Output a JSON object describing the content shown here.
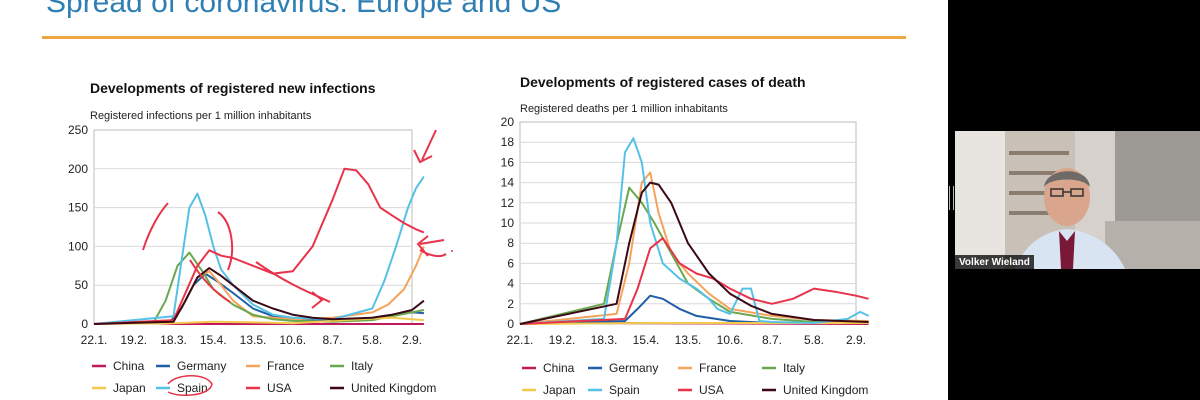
{
  "slide": {
    "title": "Spread of coronavirus: Europe and US",
    "accent_color": "#f0a544",
    "title_color": "#2f7fb5"
  },
  "colors": {
    "China": "#c2185b",
    "Germany": "#1f5fa8",
    "France": "#f5a35b",
    "Italy": "#6aa84f",
    "Japan": "#f2c94c",
    "Spain": "#56c1e6",
    "USA": "#e8334a",
    "United Kingdom": "#3b0a16",
    "annotation": "#e8334a"
  },
  "chart_data": [
    {
      "type": "line",
      "title": "Developments of registered new infections",
      "ylabel": "Registered infections per 1 million inhabitants",
      "xlabel": "",
      "ylim": [
        0,
        250
      ],
      "yticks": [
        "0",
        "50",
        "100",
        "150",
        "200",
        "250"
      ],
      "x": [
        "22.1.",
        "19.2.",
        "18.3.",
        "15.4.",
        "13.5.",
        "10.6.",
        "8.7.",
        "5.8.",
        "2.9."
      ],
      "grid": true,
      "legend_position": "bottom",
      "series": [
        {
          "name": "China",
          "x": [
            0,
            0.5,
            1,
            1.5,
            2,
            8.3
          ],
          "y": [
            0,
            2,
            3,
            1,
            0,
            0
          ]
        },
        {
          "name": "Germany",
          "x": [
            0,
            1.9,
            2.2,
            2.5,
            2.8,
            3.1,
            3.5,
            4,
            4.5,
            5,
            6,
            7,
            7.5,
            8,
            8.3
          ],
          "y": [
            0,
            2,
            20,
            50,
            65,
            55,
            40,
            20,
            10,
            6,
            5,
            8,
            12,
            15,
            14
          ]
        },
        {
          "name": "France",
          "x": [
            0,
            2,
            2.3,
            2.6,
            2.9,
            3.2,
            3.5,
            4,
            5,
            6,
            7,
            7.4,
            7.8,
            8.1,
            8.3
          ],
          "y": [
            0,
            3,
            30,
            60,
            68,
            50,
            30,
            10,
            6,
            8,
            15,
            25,
            45,
            75,
            100
          ]
        },
        {
          "name": "Italy",
          "x": [
            0,
            1.5,
            1.8,
            2.1,
            2.4,
            2.7,
            3,
            3.5,
            4,
            4.5,
            5,
            6,
            7,
            8,
            8.3
          ],
          "y": [
            0,
            2,
            30,
            75,
            92,
            70,
            45,
            25,
            12,
            6,
            4,
            3,
            5,
            15,
            18
          ]
        },
        {
          "name": "Japan",
          "x": [
            0,
            2,
            3,
            4,
            5,
            6,
            7,
            7.5,
            8,
            8.3
          ],
          "y": [
            0,
            1,
            3,
            2,
            1,
            4,
            7,
            8,
            6,
            5
          ]
        },
        {
          "name": "Spain",
          "x": [
            0,
            2,
            2.2,
            2.4,
            2.6,
            2.8,
            3,
            3.2,
            3.5,
            4,
            4.5,
            5,
            6,
            7,
            7.3,
            7.6,
            7.9,
            8.1,
            8.3
          ],
          "y": [
            0,
            10,
            80,
            150,
            168,
            140,
            100,
            70,
            50,
            25,
            12,
            8,
            6,
            20,
            55,
            100,
            150,
            175,
            190
          ]
        },
        {
          "name": "USA",
          "x": [
            0,
            2,
            2.3,
            2.6,
            2.9,
            3.2,
            3.5,
            4,
            4.5,
            5,
            5.5,
            6,
            6.3,
            6.6,
            6.9,
            7.2,
            7.5,
            7.8,
            8.1,
            8.3
          ],
          "y": [
            0,
            5,
            40,
            75,
            95,
            88,
            85,
            75,
            65,
            68,
            100,
            160,
            200,
            198,
            180,
            150,
            140,
            130,
            122,
            118
          ]
        },
        {
          "name": "United Kingdom",
          "x": [
            0,
            2,
            2.3,
            2.6,
            2.9,
            3.2,
            3.5,
            4,
            4.5,
            5,
            5.5,
            6,
            7,
            7.5,
            8,
            8.3
          ],
          "y": [
            0,
            3,
            30,
            60,
            72,
            62,
            50,
            30,
            20,
            12,
            8,
            6,
            8,
            12,
            18,
            30
          ]
        }
      ]
    },
    {
      "type": "line",
      "title": "Developments of registered cases of death",
      "ylabel": "Registered deaths per 1 million inhabitants",
      "xlabel": "",
      "ylim": [
        0,
        20
      ],
      "yticks": [
        "0",
        "2",
        "4",
        "6",
        "8",
        "10",
        "12",
        "14",
        "16",
        "18",
        "20"
      ],
      "x": [
        "22.1.",
        "19.2.",
        "18.3.",
        "15.4.",
        "13.5.",
        "10.6.",
        "8.7.",
        "5.8.",
        "2.9."
      ],
      "grid": true,
      "legend_position": "bottom",
      "series": [
        {
          "name": "China",
          "x": [
            0,
            1,
            1.5,
            2,
            8.3
          ],
          "y": [
            0,
            0.2,
            0.3,
            0.1,
            0
          ]
        },
        {
          "name": "Germany",
          "x": [
            0,
            2.5,
            2.8,
            3.1,
            3.4,
            3.8,
            4.2,
            5,
            6,
            8.3
          ],
          "y": [
            0,
            0.3,
            1.5,
            2.8,
            2.5,
            1.5,
            0.8,
            0.3,
            0.1,
            0.1
          ]
        },
        {
          "name": "France",
          "x": [
            0,
            2.3,
            2.6,
            2.9,
            3.1,
            3.3,
            3.6,
            4,
            4.5,
            5,
            6,
            7,
            8.3
          ],
          "y": [
            0,
            1,
            6,
            14,
            15,
            11,
            7,
            5,
            3,
            1.5,
            0.8,
            0.4,
            0.3
          ]
        },
        {
          "name": "Italy",
          "x": [
            0,
            2,
            2.3,
            2.6,
            2.9,
            3.2,
            3.6,
            4,
            4.5,
            5,
            6,
            7,
            8.3
          ],
          "y": [
            0,
            2,
            8,
            13.5,
            12,
            10,
            7,
            4,
            2.5,
            1.2,
            0.5,
            0.2,
            0.2
          ]
        },
        {
          "name": "Japan",
          "x": [
            0,
            3,
            4,
            5,
            6,
            7,
            8.3
          ],
          "y": [
            0,
            0.1,
            0.1,
            0.1,
            0.1,
            0.1,
            0.1
          ]
        },
        {
          "name": "Spain",
          "x": [
            0,
            2,
            2.3,
            2.5,
            2.7,
            2.9,
            3.1,
            3.4,
            3.8,
            4.2,
            4.5,
            4.7,
            5,
            5.3,
            5.5,
            5.7,
            6,
            7,
            7.8,
            8.1,
            8.3
          ],
          "y": [
            0,
            0.5,
            8,
            17,
            18.4,
            16,
            10,
            6,
            4.5,
            3.5,
            2.5,
            1.5,
            1,
            3.5,
            3.5,
            0.3,
            0.2,
            0.1,
            0.5,
            1.2,
            0.8
          ]
        },
        {
          "name": "USA",
          "x": [
            0,
            2.5,
            2.8,
            3.1,
            3.4,
            3.8,
            4.2,
            4.6,
            5,
            5.5,
            6,
            6.5,
            7,
            7.5,
            8,
            8.3
          ],
          "y": [
            0,
            0.5,
            3.5,
            7.5,
            8.5,
            6,
            5,
            4.5,
            3.5,
            2.5,
            2,
            2.5,
            3.5,
            3.2,
            2.8,
            2.5
          ]
        },
        {
          "name": "United Kingdom",
          "x": [
            0,
            2.3,
            2.6,
            2.9,
            3.1,
            3.3,
            3.6,
            4,
            4.5,
            5,
            5.5,
            6,
            7,
            8.3
          ],
          "y": [
            0,
            2,
            8,
            13,
            14,
            13.8,
            12,
            8,
            5,
            3,
            1.8,
            1,
            0.4,
            0.2
          ]
        }
      ]
    }
  ],
  "legend": {
    "row1": [
      "China",
      "Germany",
      "France",
      "Italy"
    ],
    "row2": [
      "Japan",
      "Spain",
      "USA",
      "United Kingdom"
    ]
  },
  "video": {
    "participant_name": "Volker Wieland"
  }
}
